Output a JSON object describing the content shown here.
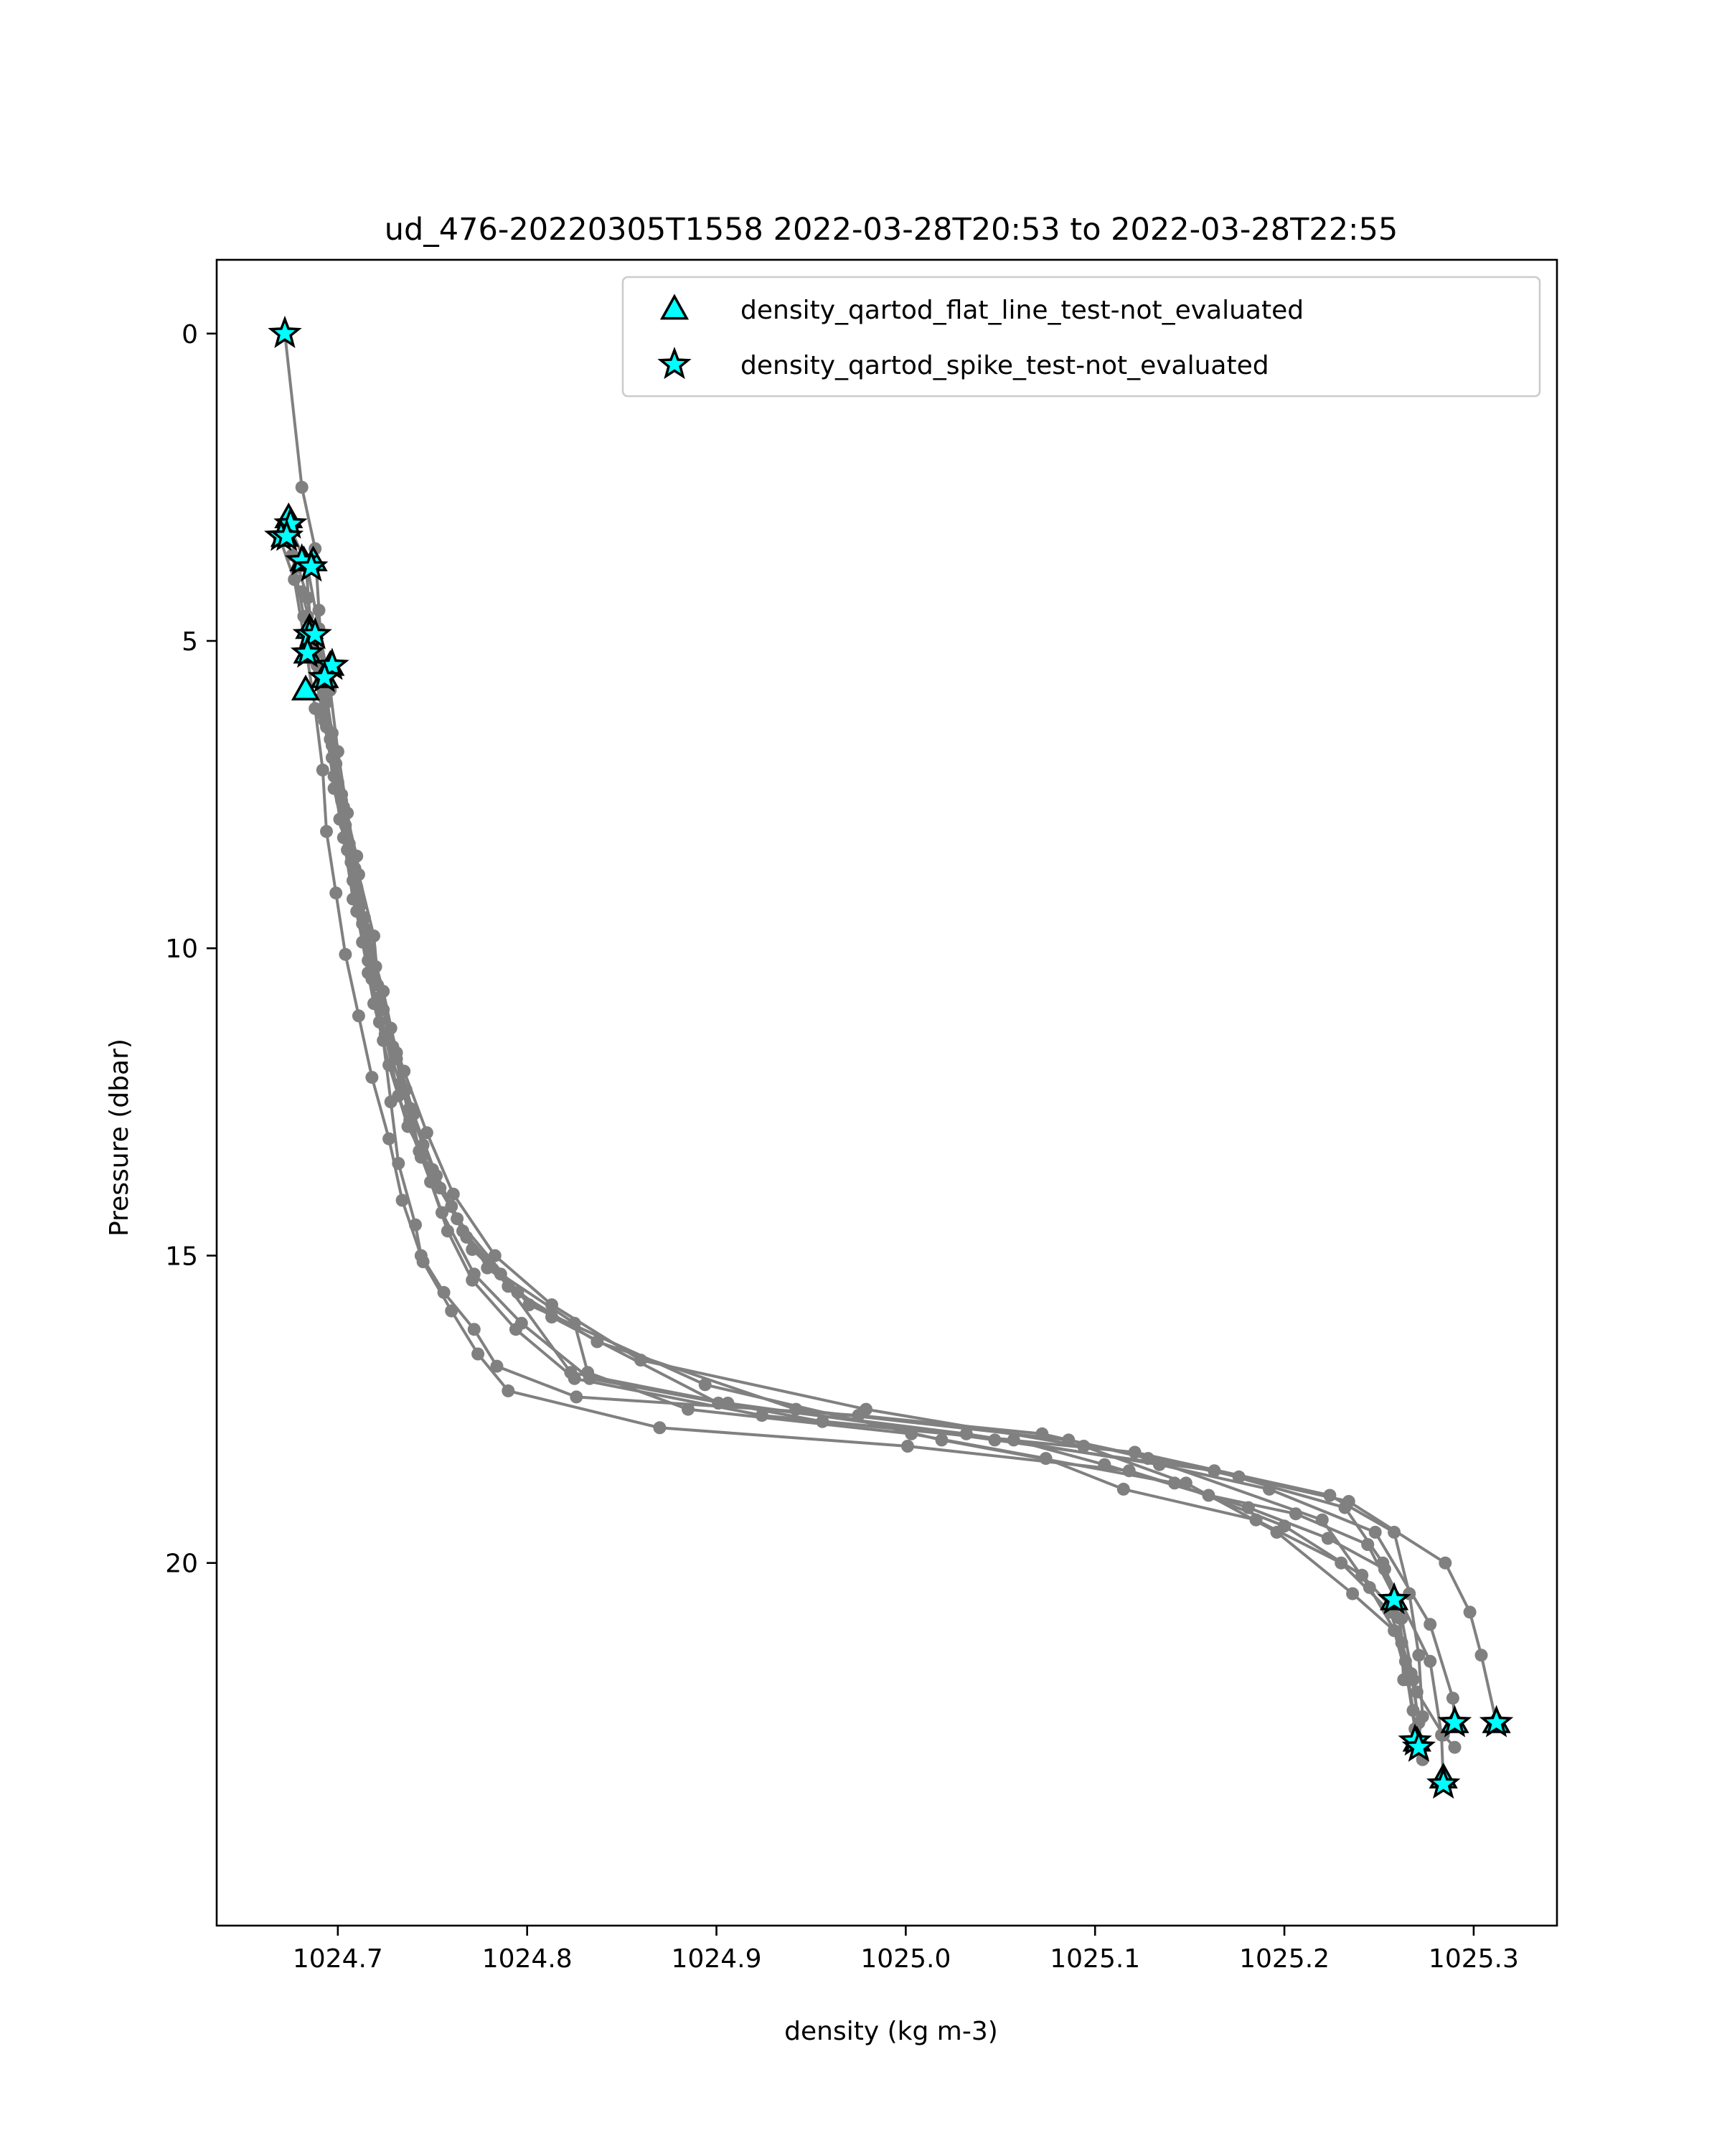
{
  "chart_data": {
    "type": "line",
    "title": "ud_476-20220305T1558 2022-03-28T20:53 to 2022-03-28T22:55",
    "xlabel": "density (kg m-3)",
    "ylabel": "Pressure (dbar)",
    "xlim": [
      1024.636,
      1025.344
    ],
    "ylim": [
      25.9,
      -1.2
    ],
    "y_inverted": true,
    "xticks": [
      1024.7,
      1024.8,
      1024.9,
      1025.0,
      1025.1,
      1025.2,
      1025.3
    ],
    "xtick_labels": [
      "1024.7",
      "1024.8",
      "1024.9",
      "1025.0",
      "1025.1",
      "1025.2",
      "1025.3"
    ],
    "yticks": [
      0,
      5,
      10,
      15,
      20
    ],
    "ytick_labels": [
      "0",
      "5",
      "10",
      "15",
      "20"
    ],
    "grid": false,
    "legend_position": "top-right",
    "line_color": "#808080",
    "marker_color": "#00ffff",
    "series": [
      {
        "x": [
          1024.672,
          1024.681,
          1024.688,
          1024.69,
          1024.692,
          1024.697,
          1024.702,
          1024.71,
          1024.714,
          1024.718,
          1024.724,
          1024.728,
          1024.732,
          1024.741,
          1024.744,
          1024.756,
          1024.772,
          1024.784,
          1024.826,
          1024.975,
          1025.072,
          1025.128,
          1025.22,
          1025.245,
          1025.262,
          1025.27,
          1025.284,
          1025.29
        ],
        "y": [
          0.0,
          2.5,
          3.5,
          4.5,
          5.5,
          6.5,
          7.5,
          8.5,
          9.5,
          10.5,
          11.5,
          12.5,
          13.5,
          14.5,
          15.0,
          15.6,
          16.2,
          16.8,
          17.3,
          17.6,
          17.9,
          18.3,
          19.3,
          20.4,
          21.3,
          22.1,
          22.8,
          23.0
        ]
      },
      {
        "x": [
          1024.674,
          1024.684,
          1024.69,
          1024.696,
          1024.7,
          1024.705,
          1024.711,
          1024.719,
          1024.722,
          1024.731,
          1024.738,
          1024.749,
          1024.758,
          1024.771,
          1024.794,
          1024.825,
          1024.924,
          1025.057,
          1025.105,
          1025.16,
          1025.206,
          1025.244,
          1025.259,
          1025.264,
          1025.268,
          1025.27
        ],
        "y": [
          3.1,
          3.8,
          4.8,
          5.8,
          6.8,
          7.8,
          8.8,
          9.8,
          10.8,
          11.8,
          12.8,
          13.8,
          14.6,
          15.4,
          16.2,
          17.0,
          17.6,
          18.0,
          18.4,
          18.9,
          19.2,
          19.7,
          20.6,
          21.6,
          22.4,
          23.0
        ]
      },
      {
        "x": [
          1024.669,
          1024.677,
          1024.683,
          1024.688,
          1024.692,
          1024.694,
          1024.699,
          1024.704,
          1024.711,
          1024.718,
          1024.727,
          1024.734,
          1024.745,
          1024.76,
          1024.774,
          1024.79,
          1024.87,
          1025.001,
          1025.118,
          1025.181,
          1025.223,
          1025.253,
          1025.277,
          1025.283,
          1025.284
        ],
        "y": [
          3.3,
          4.0,
          5.1,
          6.1,
          7.1,
          8.1,
          9.1,
          10.1,
          11.1,
          12.1,
          13.1,
          14.1,
          15.1,
          15.9,
          16.6,
          17.2,
          17.8,
          18.1,
          18.5,
          19.1,
          19.6,
          20.1,
          21.6,
          22.8,
          23.6
        ]
      },
      {
        "x": [
          1024.676,
          1024.682,
          1024.686,
          1024.692,
          1024.698,
          1024.703,
          1024.708,
          1024.716,
          1024.722,
          1024.733,
          1024.745,
          1024.76,
          1024.779,
          1024.813,
          1024.901,
          1025.032,
          1025.134,
          1025.192,
          1025.248,
          1025.277,
          1025.289,
          1025.29
        ],
        "y": [
          3.6,
          4.6,
          5.2,
          6.2,
          7.2,
          8.2,
          9.2,
          10.2,
          11.2,
          12.2,
          13.2,
          14.2,
          15.2,
          16.0,
          17.4,
          17.9,
          18.4,
          18.8,
          19.5,
          21.0,
          22.2,
          22.6
        ]
      },
      {
        "x": [
          1024.683,
          1024.686,
          1024.692,
          1024.697,
          1024.701,
          1024.708,
          1024.713,
          1024.719,
          1024.727,
          1024.737,
          1024.754,
          1024.771,
          1024.795,
          1024.837,
          1024.942,
          1025.086,
          1025.176,
          1025.234,
          1025.285,
          1025.298,
          1025.304,
          1025.312
        ],
        "y": [
          3.7,
          4.9,
          5.9,
          6.9,
          7.9,
          8.9,
          9.9,
          10.9,
          11.9,
          12.9,
          13.9,
          14.9,
          15.6,
          16.4,
          17.5,
          18.0,
          18.6,
          19.0,
          20.0,
          20.8,
          21.5,
          22.6
        ]
      },
      {
        "x": [
          1024.679,
          1024.684,
          1024.689,
          1024.694,
          1024.698,
          1024.705,
          1024.71,
          1024.716,
          1024.725,
          1024.732,
          1024.744,
          1024.763,
          1024.801,
          1024.894,
          1025.019,
          1025.142,
          1025.2,
          1025.241,
          1025.262,
          1025.268,
          1025.272
        ],
        "y": [
          3.8,
          4.3,
          5.4,
          6.4,
          7.4,
          8.4,
          9.4,
          10.4,
          11.4,
          12.4,
          13.4,
          14.4,
          15.8,
          17.1,
          18.0,
          18.7,
          19.4,
          20.2,
          20.9,
          21.9,
          22.9
        ]
      },
      {
        "x": [
          1024.681,
          1024.687,
          1024.691,
          1024.696,
          1024.702,
          1024.707,
          1024.713,
          1024.721,
          1024.729,
          1024.738,
          1024.75,
          1024.766,
          1024.786,
          1024.825,
          1024.832,
          1024.885,
          1025.003,
          1025.074,
          1025.115,
          1025.185,
          1025.23,
          1025.256,
          1025.267,
          1025.271,
          1025.273
        ],
        "y": [
          4.2,
          4.9,
          5.6,
          6.6,
          7.6,
          8.6,
          9.6,
          10.6,
          11.6,
          12.6,
          13.6,
          14.6,
          15.3,
          16.1,
          16.9,
          17.5,
          17.9,
          18.3,
          18.8,
          19.3,
          20.0,
          20.8,
          21.8,
          22.6,
          23.2
        ]
      },
      {
        "x": [
          1024.684,
          1024.689,
          1024.694,
          1024.699,
          1024.704,
          1024.71,
          1024.717,
          1024.724,
          1024.735,
          1024.747,
          1024.761,
          1024.783,
          1024.813,
          1024.86,
          1024.979,
          1025.094,
          1025.148,
          1025.196,
          1025.236,
          1025.258,
          1025.265,
          1025.269
        ],
        "y": [
          4.6,
          5.2,
          6.0,
          7.0,
          8.0,
          9.0,
          10.0,
          11.0,
          12.0,
          13.0,
          14.0,
          15.0,
          15.8,
          16.7,
          17.5,
          18.1,
          18.7,
          19.5,
          20.5,
          21.1,
          21.9,
          22.7
        ]
      },
      {
        "x": [
          1024.685,
          1024.691,
          1024.697,
          1024.703,
          1024.709,
          1024.715,
          1024.724,
          1024.731,
          1024.74,
          1024.752,
          1024.768,
          1024.79,
          1024.823,
          1024.906,
          1025.047,
          1025.163,
          1025.232,
          1025.252,
          1025.261,
          1025.263
        ],
        "y": [
          5.0,
          5.7,
          6.7,
          7.7,
          8.7,
          9.7,
          10.7,
          11.7,
          12.7,
          13.7,
          14.7,
          15.5,
          16.9,
          17.4,
          18.0,
          18.5,
          19.1,
          20.0,
          20.9,
          21.9
        ]
      },
      {
        "x": [
          1024.687,
          1024.693,
          1024.7,
          1024.706,
          1024.712,
          1024.72,
          1024.728,
          1024.736,
          1024.743,
          1024.755,
          1024.772,
          1024.797,
          1024.833,
          1024.956,
          1025.121,
          1025.224,
          1025.258,
          1025.266,
          1025.271,
          1025.273
        ],
        "y": [
          5.3,
          6.3,
          7.3,
          8.3,
          9.3,
          10.3,
          11.3,
          12.3,
          13.3,
          14.3,
          15.3,
          16.1,
          17.0,
          17.7,
          18.2,
          18.9,
          19.5,
          20.5,
          21.5,
          22.5
        ]
      }
    ],
    "flags": [
      {
        "name": "density_qartod_flat_line_test-not_evaluated",
        "marker": "triangle",
        "x": [
          1024.674,
          1024.672,
          1024.682,
          1024.687,
          1024.685,
          1024.684,
          1024.696,
          1024.693,
          1024.683,
          1025.258,
          1025.27,
          1025.284,
          1025.29,
          1025.312
        ],
        "y": [
          3.0,
          3.3,
          3.7,
          3.7,
          4.8,
          5.2,
          5.4,
          5.6,
          5.8,
          20.6,
          22.9,
          23.5,
          22.6,
          22.6
        ]
      },
      {
        "name": "density_qartod_spike_test-not_evaluated",
        "marker": "star",
        "x": [
          1024.672,
          1024.675,
          1024.67,
          1024.673,
          1024.681,
          1024.686,
          1024.685,
          1024.688,
          1024.684,
          1024.697,
          1024.693,
          1025.258,
          1025.269,
          1025.271,
          1025.284,
          1025.29,
          1025.312
        ],
        "y": [
          0.0,
          3.1,
          3.3,
          3.3,
          3.7,
          3.8,
          4.9,
          4.9,
          5.2,
          5.4,
          5.6,
          20.6,
          22.9,
          23.0,
          23.6,
          22.6,
          22.6
        ]
      }
    ]
  }
}
